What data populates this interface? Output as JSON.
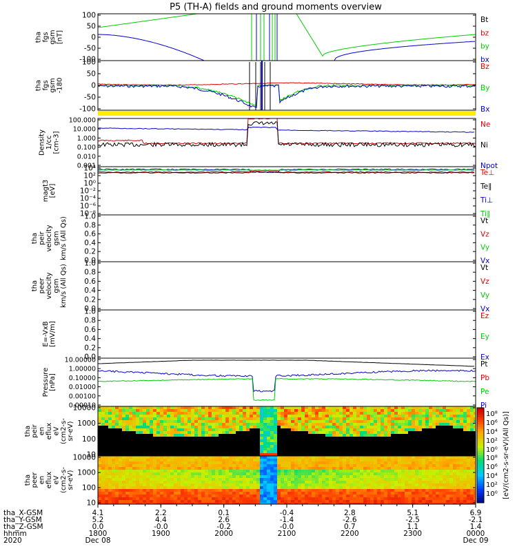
{
  "title": "P5 (TH-A) fields and ground moments overview",
  "colors": {
    "black": "#000000",
    "red": "#e00000",
    "green": "#00cc00",
    "blue": "#0000cc",
    "yellow": "#ffee00"
  },
  "chart_data": [
    {
      "type": "line",
      "name": "fgs",
      "ylabel_lines": [
        "tha",
        "fgs",
        "gsm",
        "[nT]"
      ],
      "yticks": [
        "100",
        "50",
        "0",
        "-50",
        "-100"
      ],
      "ylim": [
        -100,
        100
      ],
      "legend": [
        {
          "label": "Bt",
          "color": "black"
        },
        {
          "label": "bz",
          "color": "red"
        },
        {
          "label": "by",
          "color": "green"
        },
        {
          "label": "bx",
          "color": "blue"
        }
      ]
    },
    {
      "type": "line",
      "name": "fgs-dsl",
      "ylabel_lines": [
        "tha",
        "fgs",
        "gsm",
        "-180"
      ],
      "yticks": [
        "100",
        "50",
        "0",
        "-50",
        "-100"
      ],
      "ylim": [
        -120,
        120
      ],
      "legend": [
        {
          "label": "Bz",
          "color": "red"
        },
        {
          "label": "By",
          "color": "green"
        },
        {
          "label": "Bx",
          "color": "blue"
        }
      ]
    },
    {
      "type": "line",
      "name": "density",
      "ylabel_lines": [
        "Density",
        "1/cc",
        "[cm-3]"
      ],
      "yticks": [
        "100.000",
        "10.000",
        "1.000",
        "0.100",
        "0.010",
        "0.001"
      ],
      "legend": [
        {
          "label": "Ne",
          "color": "red"
        },
        {
          "label": "Ni",
          "color": "black"
        },
        {
          "label": "Npot",
          "color": "blue"
        }
      ]
    },
    {
      "type": "line",
      "name": "temperature",
      "ylabel_lines": [
        "magt3",
        "[eV]"
      ],
      "yticks": [
        "10⁴",
        "10²",
        "10⁰",
        "10⁻²",
        "10⁻⁴",
        "10⁻⁶",
        "10⁻⁸"
      ],
      "legend": [
        {
          "label": "Te⊥",
          "color": "red"
        },
        {
          "label": "Te∥",
          "color": "black"
        },
        {
          "label": "Ti⊥",
          "color": "blue"
        },
        {
          "label": "Ti∥",
          "color": "green"
        }
      ]
    },
    {
      "type": "line",
      "name": "peir-velocity",
      "ylabel_lines": [
        "tha",
        "peir",
        "velocity",
        "gsm",
        "km/s (All Qs)"
      ],
      "yticks": [
        "1.0",
        "0.8",
        "0.6",
        "0.4",
        "0.2",
        "0.0"
      ],
      "ylim": [
        0,
        1
      ],
      "legend": [
        {
          "label": "Vt",
          "color": "black"
        },
        {
          "label": "Vz",
          "color": "red"
        },
        {
          "label": "Vy",
          "color": "green"
        },
        {
          "label": "Vx",
          "color": "blue"
        }
      ]
    },
    {
      "type": "line",
      "name": "peer-velocity",
      "ylabel_lines": [
        "tha",
        "peer",
        "velocity",
        "gsm",
        "km/s (All Qs)"
      ],
      "yticks": [
        "1.0",
        "0.8",
        "0.6",
        "0.4",
        "0.2",
        "0.0"
      ],
      "ylim": [
        0,
        1
      ],
      "legend": [
        {
          "label": "Vt",
          "color": "black"
        },
        {
          "label": "Vz",
          "color": "red"
        },
        {
          "label": "Vy",
          "color": "green"
        },
        {
          "label": "Vx",
          "color": "blue"
        }
      ]
    },
    {
      "type": "line",
      "name": "e-field",
      "ylabel_lines": [
        "E=-VxB",
        "[mV/m]"
      ],
      "yticks": [
        "1.0",
        "0.8",
        "0.6",
        "0.4",
        "0.2",
        "0.0"
      ],
      "ylim": [
        0,
        1
      ],
      "legend": [
        {
          "label": "Ez",
          "color": "red"
        },
        {
          "label": "Ey",
          "color": "green"
        },
        {
          "label": "Ex",
          "color": "blue"
        }
      ]
    },
    {
      "type": "line",
      "name": "pressure",
      "ylabel_lines": [
        "Pressure",
        "[nPa]"
      ],
      "yticks": [
        "10.00000",
        "1.00000",
        "0.10000",
        "0.01000",
        "0.00100",
        "0.00010"
      ],
      "legend": [
        {
          "label": "Pt",
          "color": "black"
        },
        {
          "label": "Pb",
          "color": "red"
        },
        {
          "label": "Pe",
          "color": "green"
        },
        {
          "label": "Pi",
          "color": "blue"
        }
      ]
    },
    {
      "type": "heatmap",
      "name": "peir-eflux",
      "ylabel_lines": [
        "tha",
        "peir",
        "en",
        "eflux",
        "eV",
        "(cm2-s-",
        "sr-eV)"
      ],
      "yticks": [
        "10000",
        "1000",
        "100",
        "10"
      ]
    },
    {
      "type": "heatmap",
      "name": "peer-eflux",
      "ylabel_lines": [
        "tha",
        "peer",
        "en",
        "eflux",
        "eV",
        "(cm2-s-",
        "sr-eV)"
      ],
      "yticks": [
        "10000",
        "1000",
        "100",
        "10"
      ]
    }
  ],
  "colorbar": {
    "label": "[eV/(cm2-s-sr-eV)(All Qs)]",
    "ticks": [
      "10⁸",
      "10⁶",
      "10⁴",
      "10²",
      "10⁰"
    ]
  },
  "x_axis": {
    "row_labels": [
      "tha_X-GSM",
      "tha_Y-GSM",
      "tha_Z-GSM",
      "hhmm",
      "2020"
    ],
    "columns": [
      {
        "x": "4.1",
        "y": "5.2",
        "z": "0.0",
        "hhmm": "1800",
        "date": "Dec 08"
      },
      {
        "x": "2.2",
        "y": "4.4",
        "z": "-0.0",
        "hhmm": "1900",
        "date": ""
      },
      {
        "x": "0.1",
        "y": "2.6",
        "z": "-0.2",
        "hhmm": "2000",
        "date": ""
      },
      {
        "x": "-0.4",
        "y": "-1.4",
        "z": "-0.0",
        "hhmm": "2100",
        "date": ""
      },
      {
        "x": "2.8",
        "y": "-2.6",
        "z": "0.7",
        "hhmm": "2200",
        "date": ""
      },
      {
        "x": "5.1",
        "y": "-2.5",
        "z": "1.1",
        "hhmm": "2300",
        "date": ""
      },
      {
        "x": "6.9",
        "y": "-2.1",
        "z": "1.4",
        "hhmm": "0000",
        "date": "Dec 09"
      }
    ]
  }
}
